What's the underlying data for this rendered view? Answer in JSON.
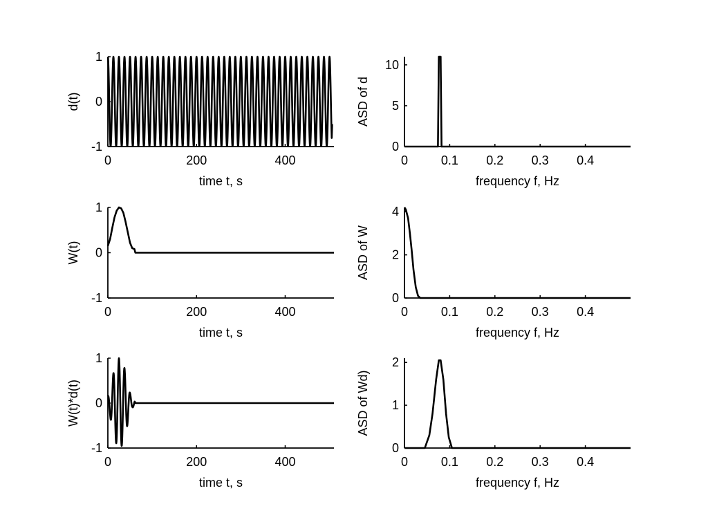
{
  "figure": {
    "background": "#ffffff",
    "line_color": "#000000"
  },
  "chart_data": [
    {
      "type": "line",
      "panel": "top-left",
      "xlabel": "time t, s",
      "ylabel": "d(t)",
      "xlim": [
        0,
        510
      ],
      "ylim": [
        -1,
        1
      ],
      "xticks": [
        0,
        200,
        400
      ],
      "yticks": [
        -1,
        0,
        1
      ],
      "signal": "cosine, period ~12.5 s",
      "series": [
        {
          "x": [
            0,
            3.1,
            6.2,
            9.4,
            12.5
          ],
          "y": [
            1,
            0,
            -1,
            0,
            1
          ]
        }
      ]
    },
    {
      "type": "line",
      "panel": "top-right",
      "xlabel": "frequency f, Hz",
      "ylabel": "ASD of d",
      "xlim": [
        0,
        0.5
      ],
      "ylim": [
        0,
        11
      ],
      "xticks": [
        0,
        0.1,
        0.2,
        0.3,
        0.4
      ],
      "yticks": [
        0,
        5,
        10
      ],
      "series": [
        {
          "x": [
            0,
            0.074,
            0.076,
            0.078,
            0.08,
            0.082,
            0.5
          ],
          "y": [
            0,
            0,
            11,
            11,
            11,
            0,
            0
          ]
        }
      ]
    },
    {
      "type": "line",
      "panel": "middle-left",
      "xlabel": "time t, s",
      "ylabel": "W(t)",
      "xlim": [
        0,
        510
      ],
      "ylim": [
        -1,
        1
      ],
      "xticks": [
        0,
        200,
        400
      ],
      "yticks": [
        -1,
        0,
        1
      ],
      "series": [
        {
          "x": [
            0,
            5,
            10,
            15,
            20,
            25,
            30,
            35,
            40,
            45,
            50,
            55,
            60,
            62,
            510
          ],
          "y": [
            0.15,
            0.3,
            0.55,
            0.78,
            0.93,
            1.0,
            0.98,
            0.88,
            0.68,
            0.45,
            0.22,
            0.1,
            0.08,
            0,
            0
          ]
        }
      ]
    },
    {
      "type": "line",
      "panel": "middle-right",
      "xlabel": "frequency f, Hz",
      "ylabel": "ASD of W",
      "xlim": [
        0,
        0.5
      ],
      "ylim": [
        0,
        4.2
      ],
      "xticks": [
        0,
        0.1,
        0.2,
        0.3,
        0.4
      ],
      "yticks": [
        0,
        2,
        4
      ],
      "series": [
        {
          "x": [
            0,
            0.003,
            0.008,
            0.012,
            0.016,
            0.02,
            0.025,
            0.03,
            0.035,
            0.5
          ],
          "y": [
            4.2,
            4.1,
            3.7,
            3.0,
            2.2,
            1.3,
            0.5,
            0.1,
            0,
            0
          ]
        }
      ]
    },
    {
      "type": "line",
      "panel": "bottom-left",
      "xlabel": "time t, s",
      "ylabel": "W(t)*d(t)",
      "xlim": [
        0,
        510
      ],
      "ylim": [
        -1,
        1
      ],
      "xticks": [
        0,
        200,
        400
      ],
      "yticks": [
        -1,
        0,
        1
      ],
      "signal": "W(t) multiplied by d(t)"
    },
    {
      "type": "line",
      "panel": "bottom-right",
      "xlabel": "frequency f, Hz",
      "ylabel": "ASD of Wd)",
      "xlim": [
        0,
        0.5
      ],
      "ylim": [
        0,
        2.1
      ],
      "xticks": [
        0,
        0.1,
        0.2,
        0.3,
        0.4
      ],
      "yticks": [
        0,
        1,
        2
      ],
      "series": [
        {
          "x": [
            0,
            0.045,
            0.055,
            0.062,
            0.07,
            0.076,
            0.08,
            0.086,
            0.092,
            0.098,
            0.105,
            0.5
          ],
          "y": [
            0,
            0,
            0.3,
            0.8,
            1.6,
            2.05,
            2.05,
            1.6,
            0.8,
            0.25,
            0,
            0
          ]
        }
      ]
    }
  ]
}
